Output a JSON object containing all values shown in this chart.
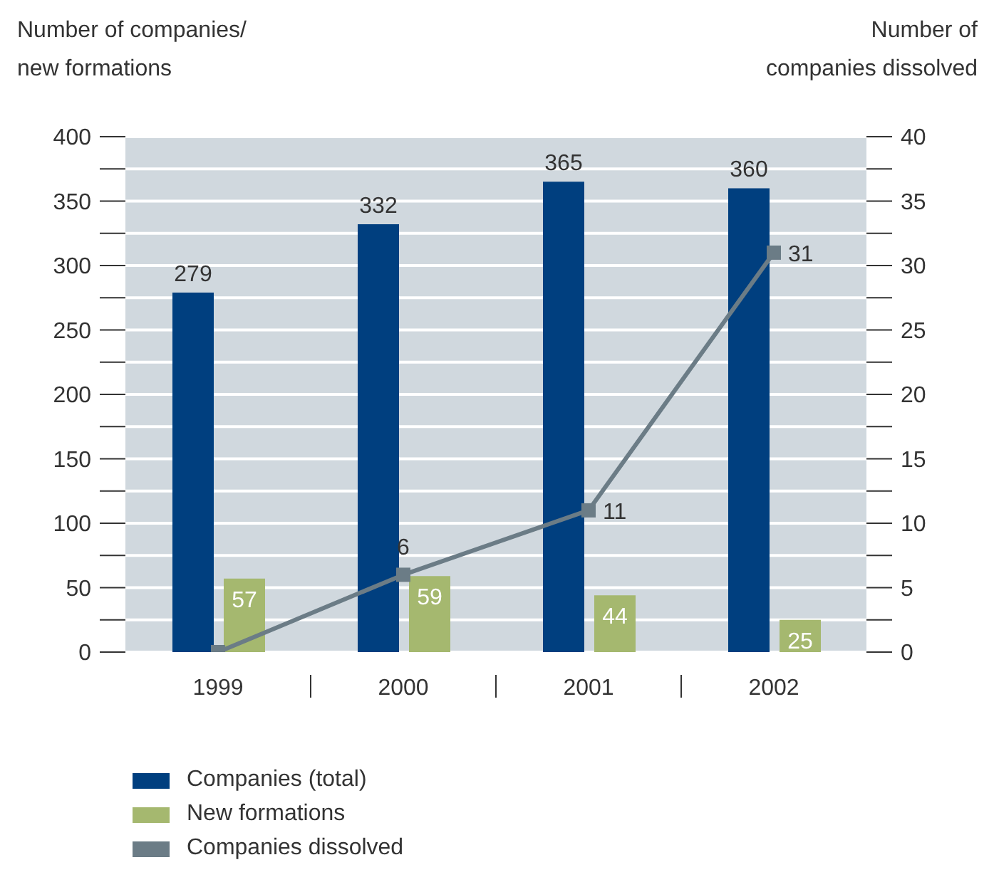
{
  "chart_data": {
    "type": "bar",
    "ylabel": "Number of companies/\nnew formations",
    "y2label": "Number of\ncompanies dissolved",
    "categories": [
      "1999",
      "2000",
      "2001",
      "2002"
    ],
    "series": [
      {
        "name": "Companies (total)",
        "color": "#003f7f",
        "values": [
          279,
          332,
          365,
          360
        ],
        "value_labels": [
          "279",
          "332",
          "365",
          "360"
        ]
      },
      {
        "name": "New formations",
        "color": "#a5b86f",
        "values": [
          57,
          59,
          44,
          25
        ],
        "value_labels": [
          "57",
          "59",
          "44",
          "25"
        ]
      },
      {
        "name": "Companies dissolved",
        "type": "line",
        "axis": "y2",
        "color": "#6b7c86",
        "values": [
          0,
          6,
          11,
          31
        ],
        "value_labels": [
          null,
          "6",
          "11",
          "31"
        ]
      }
    ],
    "ylim": [
      0,
      400
    ],
    "yticks": [
      0,
      {
        "value": 25,
        "label": null
      },
      50,
      {
        "value": 75,
        "label": null
      },
      100,
      {
        "value": 125,
        "label": null
      },
      150,
      {
        "value": 175,
        "label": null
      },
      200,
      {
        "value": 225,
        "label": null
      },
      250,
      {
        "value": 275,
        "label": null
      },
      300,
      {
        "value": 325,
        "label": null
      },
      350,
      {
        "value": 375,
        "label": null
      },
      400
    ],
    "y2lim": [
      0,
      40
    ],
    "y2ticks": [
      0,
      {
        "value": 2.5,
        "label": null
      },
      5,
      {
        "value": 7.5,
        "label": null
      },
      10,
      {
        "value": 12.5,
        "label": null
      },
      15,
      {
        "value": 17.5,
        "label": null
      },
      20,
      {
        "value": 22.5,
        "label": null
      },
      25,
      {
        "value": 27.5,
        "label": null
      },
      30,
      {
        "value": 32.5,
        "label": null
      },
      35,
      {
        "value": 37.5,
        "label": null
      },
      40
    ],
    "grid": "y",
    "legend": "bottom left",
    "marker": "square",
    "line_style": "solid"
  }
}
